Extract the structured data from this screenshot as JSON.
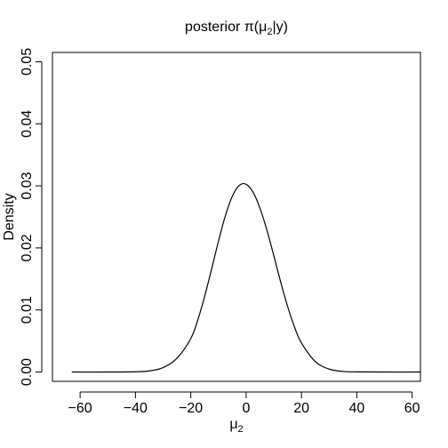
{
  "chart_data": {
    "type": "line",
    "title": {
      "prefix": "posterior π(μ",
      "subscript": "2",
      "suffix": "|y)"
    },
    "xlabel": {
      "base": "μ",
      "subscript": "2"
    },
    "ylabel": "Density",
    "xlim": [
      -70,
      63
    ],
    "ylim": [
      -0.0015,
      0.0515
    ],
    "xticks": [
      -60,
      -40,
      -20,
      0,
      20,
      40,
      60
    ],
    "xtick_labels": [
      "−60",
      "−40",
      "−20",
      "0",
      "20",
      "40",
      "60"
    ],
    "yticks": [
      0,
      0.01,
      0.02,
      0.03,
      0.04,
      0.05
    ],
    "ytick_labels": [
      "0.00",
      "0.01",
      "0.02",
      "0.03",
      "0.04",
      "0.05"
    ],
    "grid": false,
    "line_color": "#000000",
    "series": [
      {
        "x": [
          -63,
          -50,
          -40,
          -35,
          -30,
          -25,
          -20,
          -17.5,
          -15,
          -12.5,
          -10,
          -7.5,
          -5,
          -2.5,
          0,
          2.5,
          5,
          7.5,
          10,
          12.5,
          15,
          17.5,
          20,
          25,
          30,
          35,
          40,
          50,
          63
        ],
        "y": [
          0.0,
          0.0,
          4e-05,
          0.00018,
          0.00071,
          0.00221,
          0.00539,
          0.00836,
          0.01218,
          0.01656,
          0.02108,
          0.02518,
          0.02831,
          0.03006,
          0.03026,
          0.02898,
          0.02641,
          0.02288,
          0.01876,
          0.01449,
          0.01055,
          0.00723,
          0.00468,
          0.00167,
          0.00047,
          0.0001,
          2e-05,
          0.0,
          0.0
        ]
      }
    ]
  }
}
